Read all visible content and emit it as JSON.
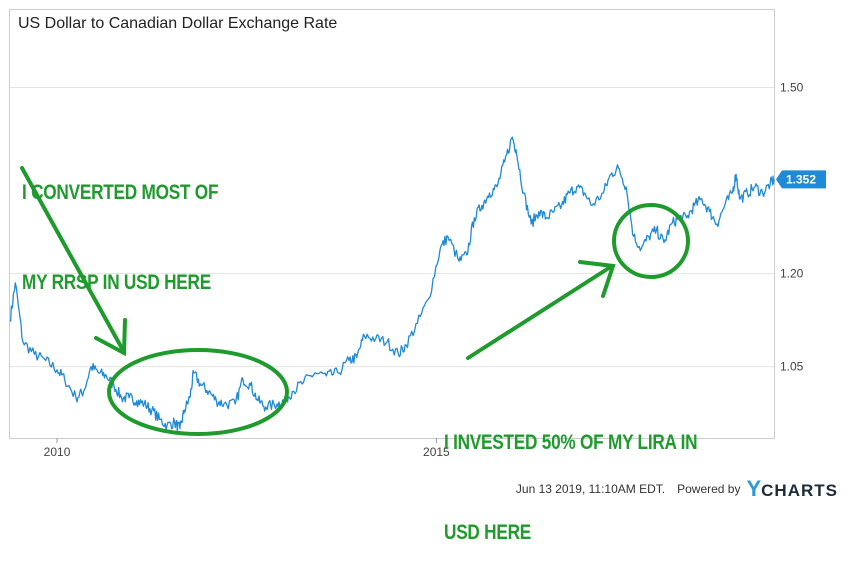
{
  "title": "US Dollar to Canadian Dollar Exchange Rate",
  "footer": {
    "timestamp": "Jun 13 2019, 11:10AM EDT.",
    "powered_by": "Powered by",
    "brand_y": "Y",
    "brand_rest": "CHARTS"
  },
  "annotations": {
    "left": [
      "I CONVERTED MOST OF",
      "MY RRSP IN USD HERE"
    ],
    "right": [
      "I INVESTED 50% OF MY LIRA IN",
      "USD HERE"
    ]
  },
  "colors": {
    "line": "#1f8ad6",
    "annotation": "#1f9b2e",
    "badge": "#1f8ad6",
    "grid": "#e4e4e4",
    "frame": "#cccccc"
  },
  "chart_data": {
    "type": "line",
    "title": "US Dollar to Canadian Dollar Exchange Rate",
    "xlabel": "",
    "ylabel": "",
    "x_ticks": [
      "2010",
      "2015"
    ],
    "y_ticks": [
      1.05,
      1.2,
      1.5
    ],
    "ylim": [
      0.935,
      1.625
    ],
    "xlim": [
      2009.38,
      2019.45
    ],
    "grid": "horizontal",
    "last_value_label": "1.352",
    "series": [
      {
        "values": [
          [
            2009.38,
            1.125
          ],
          [
            2009.45,
            1.185
          ],
          [
            2009.55,
            1.09
          ],
          [
            2009.7,
            1.07
          ],
          [
            2009.85,
            1.06
          ],
          [
            2010.0,
            1.045
          ],
          [
            2010.1,
            1.03
          ],
          [
            2010.25,
            1.0
          ],
          [
            2010.35,
            1.01
          ],
          [
            2010.45,
            1.05
          ],
          [
            2010.55,
            1.04
          ],
          [
            2010.65,
            1.035
          ],
          [
            2010.75,
            1.02
          ],
          [
            2010.85,
            1.0
          ],
          [
            2010.95,
            1.0
          ],
          [
            2011.05,
            0.995
          ],
          [
            2011.15,
            0.99
          ],
          [
            2011.25,
            0.98
          ],
          [
            2011.35,
            0.965
          ],
          [
            2011.45,
            0.955
          ],
          [
            2011.55,
            0.96
          ],
          [
            2011.62,
            0.95
          ],
          [
            2011.68,
            0.98
          ],
          [
            2011.75,
            1.0
          ],
          [
            2011.8,
            1.04
          ],
          [
            2011.9,
            1.02
          ],
          [
            2012.0,
            1.01
          ],
          [
            2012.1,
            0.995
          ],
          [
            2012.2,
            0.99
          ],
          [
            2012.35,
            0.99
          ],
          [
            2012.45,
            1.03
          ],
          [
            2012.55,
            1.02
          ],
          [
            2012.65,
            0.995
          ],
          [
            2012.75,
            0.985
          ],
          [
            2012.9,
            0.99
          ],
          [
            2013.0,
            0.995
          ],
          [
            2013.1,
            1.01
          ],
          [
            2013.25,
            1.025
          ],
          [
            2013.4,
            1.04
          ],
          [
            2013.55,
            1.035
          ],
          [
            2013.7,
            1.04
          ],
          [
            2013.85,
            1.06
          ],
          [
            2013.95,
            1.065
          ],
          [
            2014.05,
            1.1
          ],
          [
            2014.2,
            1.095
          ],
          [
            2014.35,
            1.09
          ],
          [
            2014.5,
            1.07
          ],
          [
            2014.6,
            1.085
          ],
          [
            2014.75,
            1.12
          ],
          [
            2014.9,
            1.16
          ],
          [
            2015.05,
            1.24
          ],
          [
            2015.15,
            1.26
          ],
          [
            2015.3,
            1.22
          ],
          [
            2015.4,
            1.23
          ],
          [
            2015.5,
            1.29
          ],
          [
            2015.6,
            1.31
          ],
          [
            2015.7,
            1.33
          ],
          [
            2015.8,
            1.34
          ],
          [
            2015.9,
            1.38
          ],
          [
            2016.0,
            1.42
          ],
          [
            2016.05,
            1.4
          ],
          [
            2016.15,
            1.33
          ],
          [
            2016.25,
            1.28
          ],
          [
            2016.35,
            1.3
          ],
          [
            2016.45,
            1.29
          ],
          [
            2016.55,
            1.3
          ],
          [
            2016.65,
            1.31
          ],
          [
            2016.75,
            1.33
          ],
          [
            2016.85,
            1.34
          ],
          [
            2016.95,
            1.33
          ],
          [
            2017.05,
            1.31
          ],
          [
            2017.2,
            1.33
          ],
          [
            2017.3,
            1.36
          ],
          [
            2017.4,
            1.37
          ],
          [
            2017.5,
            1.34
          ],
          [
            2017.6,
            1.26
          ],
          [
            2017.7,
            1.24
          ],
          [
            2017.8,
            1.26
          ],
          [
            2017.9,
            1.27
          ],
          [
            2018.0,
            1.25
          ],
          [
            2018.1,
            1.28
          ],
          [
            2018.2,
            1.29
          ],
          [
            2018.3,
            1.29
          ],
          [
            2018.4,
            1.31
          ],
          [
            2018.5,
            1.32
          ],
          [
            2018.6,
            1.3
          ],
          [
            2018.7,
            1.28
          ],
          [
            2018.8,
            1.31
          ],
          [
            2018.9,
            1.33
          ],
          [
            2018.95,
            1.36
          ],
          [
            2019.0,
            1.32
          ],
          [
            2019.1,
            1.33
          ],
          [
            2019.2,
            1.34
          ],
          [
            2019.3,
            1.33
          ],
          [
            2019.4,
            1.345
          ],
          [
            2019.45,
            1.352
          ]
        ]
      }
    ]
  }
}
